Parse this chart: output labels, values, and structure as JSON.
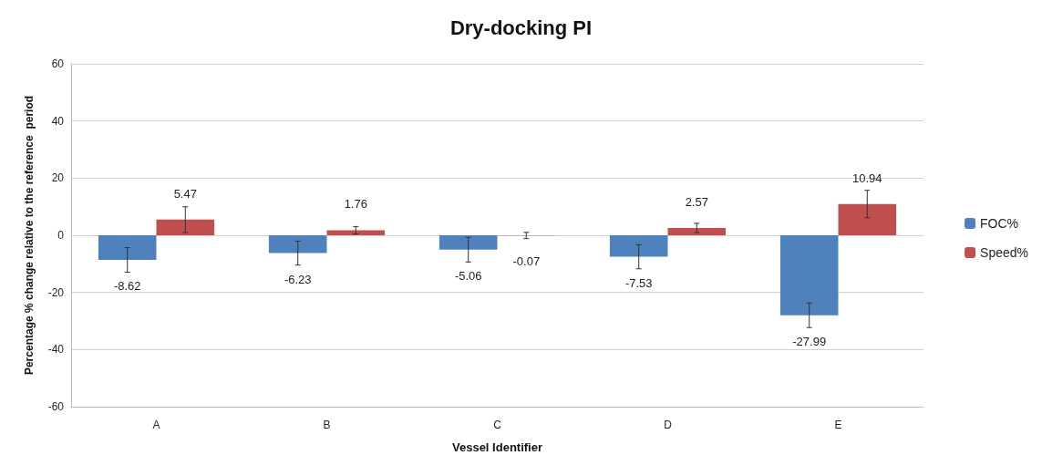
{
  "chart_data": {
    "type": "bar",
    "title": "Dry-docking PI",
    "xlabel": "Vessel Identifier",
    "ylabel": "Percentage % change relative to the reference  period",
    "categories": [
      "A",
      "B",
      "C",
      "D",
      "E"
    ],
    "series": [
      {
        "name": "FOC%",
        "color": "#4f81bd",
        "values": [
          -8.62,
          -6.23,
          -5.06,
          -7.53,
          -27.99
        ],
        "errors": [
          4.3,
          4.2,
          4.3,
          4.2,
          4.3
        ]
      },
      {
        "name": "Speed%",
        "color": "#c0504d",
        "values": [
          5.47,
          1.76,
          -0.07,
          2.57,
          10.94
        ],
        "errors": [
          4.5,
          1.3,
          1.1,
          1.6,
          4.8
        ]
      }
    ],
    "ylim": [
      -60,
      60
    ],
    "yticks": [
      -60,
      -40,
      -20,
      0,
      20,
      40,
      60
    ],
    "grid": "y",
    "legend": "right",
    "data_labels": true
  }
}
